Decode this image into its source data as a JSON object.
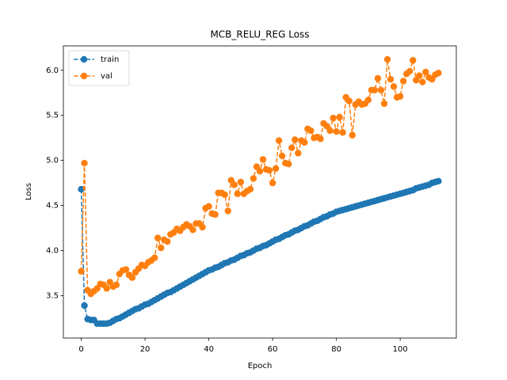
{
  "chart_data": {
    "type": "line",
    "title": "MCB_RELU_REG Loss",
    "x_label": "Epoch",
    "y_label": "Loss",
    "x": [
      0,
      1,
      2,
      3,
      4,
      5,
      6,
      7,
      8,
      9,
      10,
      11,
      12,
      13,
      14,
      15,
      16,
      17,
      18,
      19,
      20,
      21,
      22,
      23,
      24,
      25,
      26,
      27,
      28,
      29,
      30,
      31,
      32,
      33,
      34,
      35,
      36,
      37,
      38,
      39,
      40,
      41,
      42,
      43,
      44,
      45,
      46,
      47,
      48,
      49,
      50,
      51,
      52,
      53,
      54,
      55,
      56,
      57,
      58,
      59,
      60,
      61,
      62,
      63,
      64,
      65,
      66,
      67,
      68,
      69,
      70,
      71,
      72,
      73,
      74,
      75,
      76,
      77,
      78,
      79,
      80,
      81,
      82,
      83,
      84,
      85,
      86,
      87,
      88,
      89,
      90,
      91,
      92,
      93,
      94,
      95,
      96,
      97,
      98,
      99,
      100,
      101,
      102,
      103,
      104,
      105,
      106,
      107,
      108,
      109,
      110,
      111,
      112
    ],
    "series": [
      {
        "name": "train",
        "color": "#1f77b4",
        "values": [
          4.68,
          3.39,
          3.24,
          3.23,
          3.23,
          3.19,
          3.19,
          3.19,
          3.19,
          3.2,
          3.22,
          3.24,
          3.25,
          3.27,
          3.29,
          3.31,
          3.33,
          3.35,
          3.36,
          3.38,
          3.4,
          3.41,
          3.43,
          3.45,
          3.47,
          3.49,
          3.51,
          3.53,
          3.54,
          3.56,
          3.58,
          3.6,
          3.62,
          3.64,
          3.66,
          3.68,
          3.7,
          3.72,
          3.74,
          3.76,
          3.78,
          3.79,
          3.81,
          3.82,
          3.84,
          3.86,
          3.87,
          3.89,
          3.9,
          3.92,
          3.94,
          3.95,
          3.97,
          3.98,
          4.0,
          4.02,
          4.03,
          4.05,
          4.06,
          4.08,
          4.1,
          4.12,
          4.13,
          4.15,
          4.17,
          4.18,
          4.2,
          4.22,
          4.23,
          4.25,
          4.27,
          4.28,
          4.3,
          4.32,
          4.33,
          4.35,
          4.37,
          4.38,
          4.4,
          4.41,
          4.43,
          4.44,
          4.45,
          4.46,
          4.47,
          4.48,
          4.49,
          4.5,
          4.51,
          4.52,
          4.53,
          4.54,
          4.55,
          4.56,
          4.57,
          4.58,
          4.59,
          4.6,
          4.61,
          4.62,
          4.63,
          4.64,
          4.65,
          4.66,
          4.67,
          4.69,
          4.7,
          4.71,
          4.72,
          4.73,
          4.75,
          4.76,
          4.77
        ]
      },
      {
        "name": "val",
        "color": "#ff7f0e",
        "values": [
          3.77,
          4.97,
          3.56,
          3.52,
          3.55,
          3.58,
          3.63,
          3.62,
          3.58,
          3.65,
          3.6,
          3.62,
          3.74,
          3.78,
          3.79,
          3.73,
          3.7,
          3.76,
          3.8,
          3.84,
          3.83,
          3.87,
          3.89,
          3.92,
          4.14,
          4.03,
          4.12,
          4.1,
          4.18,
          4.2,
          4.24,
          4.22,
          4.26,
          4.29,
          4.27,
          4.23,
          4.3,
          4.3,
          4.26,
          4.47,
          4.49,
          4.41,
          4.4,
          4.64,
          4.64,
          4.62,
          4.44,
          4.78,
          4.73,
          4.63,
          4.76,
          4.63,
          4.66,
          4.68,
          4.8,
          4.93,
          4.88,
          5.01,
          4.9,
          4.89,
          4.75,
          4.91,
          5.22,
          5.05,
          4.97,
          4.96,
          5.14,
          5.23,
          5.08,
          5.22,
          5.2,
          5.35,
          5.33,
          5.25,
          5.26,
          5.24,
          5.41,
          5.38,
          5.33,
          5.47,
          5.32,
          5.48,
          5.31,
          5.7,
          5.66,
          5.28,
          5.62,
          5.65,
          5.62,
          5.63,
          5.67,
          5.78,
          5.78,
          5.91,
          5.78,
          5.63,
          6.12,
          5.9,
          5.82,
          5.7,
          5.71,
          5.88,
          5.96,
          5.99,
          6.11,
          5.89,
          5.94,
          5.87,
          5.98,
          5.92,
          5.9,
          5.95,
          5.97
        ]
      }
    ],
    "xlim": [
      -5.6,
      117.6
    ],
    "ylim": [
      3.03,
      6.27
    ],
    "xticks": [
      0,
      20,
      40,
      60,
      80,
      100
    ],
    "yticks": [
      3.5,
      {
        "value": 4.0,
        "label": "4.0"
      },
      4.5,
      {
        "value": 5.0,
        "label": "5.0"
      },
      5.5,
      {
        "value": 6.0,
        "label": "6.0"
      }
    ],
    "legend": "upper left",
    "grid": false
  }
}
